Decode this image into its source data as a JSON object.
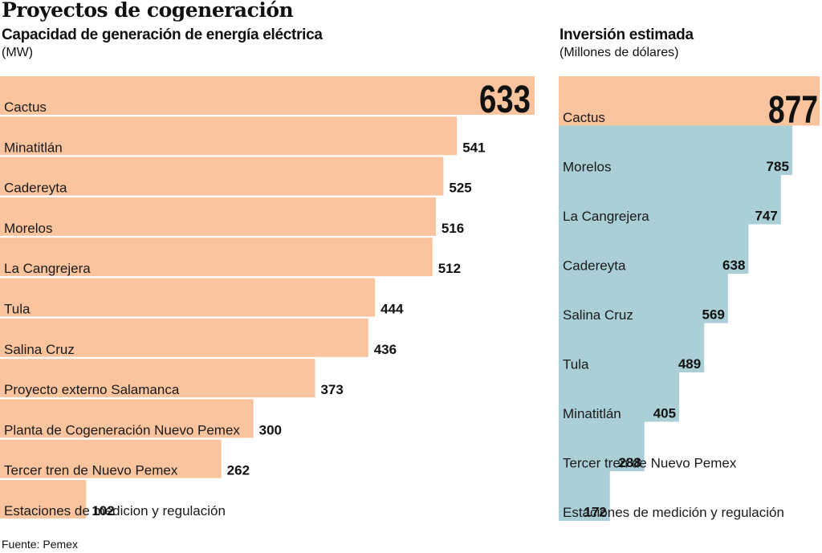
{
  "title": "Proyectos de cogeneración",
  "source": "Fuente: Pemex",
  "colors": {
    "highlight": "#f9c49e",
    "secondary": "#aacfd6",
    "text": "#111111"
  },
  "chart_data": [
    {
      "type": "bar",
      "orientation": "horizontal",
      "title": "Capacidad de generación de energía eléctrica",
      "unit": "(MW)",
      "categories": [
        "Cactus",
        "Minatitlán",
        "Cadereyta",
        "Morelos",
        "La Cangrejera",
        "Tula",
        "Salina Cruz",
        "Proyecto externo Salamanca",
        "Planta de Cogeneración Nuevo Pemex",
        "Tercer tren de Nuevo Pemex",
        "Estaciones de medicion y regulación"
      ],
      "values": [
        633,
        541,
        525,
        516,
        512,
        444,
        436,
        373,
        300,
        262,
        102
      ],
      "value_labels": [
        "633",
        "541",
        "525",
        "516",
        "512",
        "444",
        "436",
        "373",
        "300",
        "262",
        "102"
      ],
      "highlight_index": 0,
      "bar_color": "#f9c49e",
      "xlim": [
        0,
        633
      ],
      "grid": false
    },
    {
      "type": "bar",
      "orientation": "horizontal",
      "title": "Inversión estimada",
      "unit": "(Millones de dólares)",
      "categories": [
        "Cactus",
        "Morelos",
        "La Cangrejera",
        "Cadereyta",
        "Salina Cruz",
        "Tula",
        "Minatitlán",
        "Tercer tren de Nuevo Pemex",
        "Estaciones de medición y regulación"
      ],
      "values": [
        877,
        785,
        747,
        638,
        569,
        489,
        405,
        288,
        172
      ],
      "value_labels": [
        "877",
        "785",
        "747",
        "638",
        "569",
        "489",
        "405",
        "288",
        "172"
      ],
      "highlight_index": 0,
      "highlight_color": "#f9c49e",
      "bar_color": "#aacfd6",
      "xlim": [
        0,
        877
      ],
      "grid": false
    }
  ]
}
